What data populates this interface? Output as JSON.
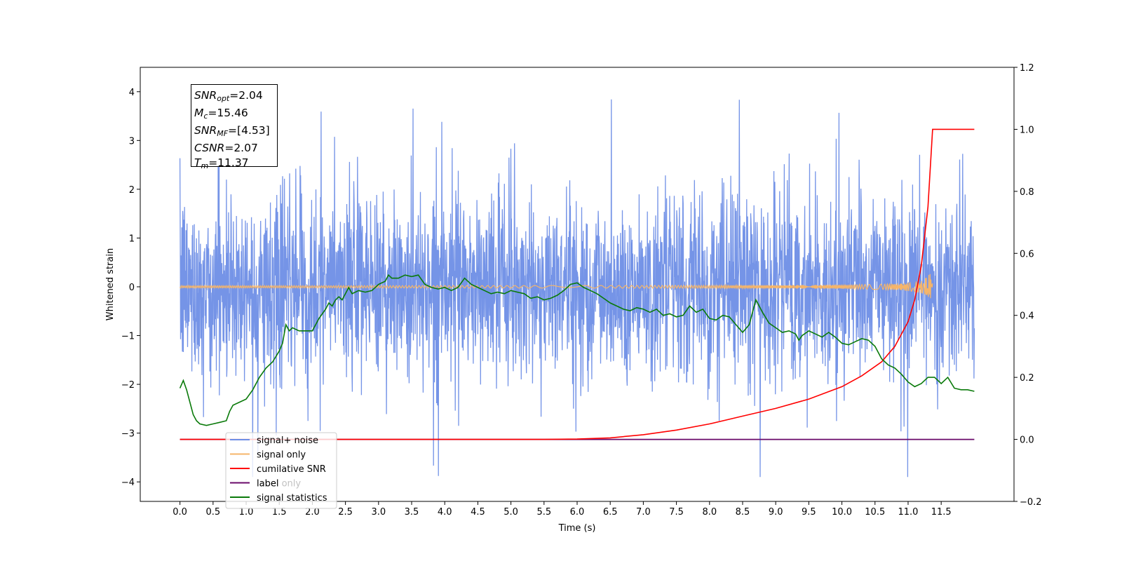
{
  "chart_data": {
    "type": "line",
    "xlabel": "Time (s)",
    "ylabel": "Whitened strain",
    "xlim": [
      -0.6,
      12.6
    ],
    "ylim": [
      -4.4,
      4.5
    ],
    "y2lim": [
      -0.2,
      1.2
    ],
    "x_ticks": [
      "0.0",
      "0.5",
      "1.0",
      "1.5",
      "2.0",
      "2.5",
      "3.0",
      "3.5",
      "4.0",
      "4.5",
      "5.0",
      "5.5",
      "6.0",
      "6.5",
      "7.0",
      "7.5",
      "8.0",
      "8.5",
      "9.0",
      "9.5",
      "10.0",
      "10.5",
      "11.0",
      "11.5"
    ],
    "y_ticks": [
      "4",
      "3",
      "2",
      "1",
      "0",
      "−1",
      "−2",
      "−3",
      "−4"
    ],
    "y2_ticks": [
      "1.2",
      "1.0",
      "0.8",
      "0.6",
      "0.4",
      "0.2",
      "0.0",
      "−0.2"
    ],
    "grid": false,
    "legend_position": "lower-left",
    "legend": [
      "signal+ noise",
      "signal only",
      "cumilative SNR",
      "label",
      "signal statistics"
    ],
    "legend_occluded_text": "label only",
    "annotation": {
      "lines": [
        {
          "symbol": "SNR",
          "sub": "opt",
          "value": "=2.04"
        },
        {
          "symbol": "M",
          "sub": "c",
          "value": "=15.46"
        },
        {
          "symbol": "SNR",
          "sub": "MF",
          "value": "=[4.53]"
        },
        {
          "symbol": "CSNR",
          "sub": "",
          "value": "=2.07"
        },
        {
          "symbol": "T",
          "sub": "m",
          "value": "=11.37"
        }
      ]
    },
    "series": [
      {
        "name": "signal+ noise",
        "axis": "left",
        "color": "#6e8ee6",
        "x_range": [
          0.0,
          12.0
        ],
        "typical_range": [
          -1.8,
          1.8
        ],
        "extreme_range": [
          -3.9,
          4.1
        ]
      },
      {
        "name": "signal only",
        "axis": "left",
        "color": "#f5b56a",
        "x_range": [
          0.0,
          11.37
        ],
        "amplitude_end": 0.45
      },
      {
        "name": "cumilative SNR",
        "axis": "right",
        "color": "#ff0000",
        "x": [
          0.0,
          5.5,
          6.0,
          6.5,
          7.0,
          7.5,
          8.0,
          8.5,
          9.0,
          9.5,
          10.0,
          10.3,
          10.6,
          10.8,
          11.0,
          11.1,
          11.2,
          11.3,
          11.37,
          12.0
        ],
        "y": [
          0.0,
          0.0,
          0.001,
          0.005,
          0.015,
          0.03,
          0.05,
          0.075,
          0.1,
          0.13,
          0.17,
          0.205,
          0.25,
          0.3,
          0.38,
          0.45,
          0.56,
          0.75,
          1.0,
          1.0
        ]
      },
      {
        "name": "label",
        "axis": "right",
        "color": "#6a0a6a",
        "x": [
          0.0,
          12.0
        ],
        "y": [
          0.0,
          0.0
        ]
      },
      {
        "name": "signal statistics",
        "axis": "right",
        "color": "#0a7a0a",
        "x": [
          0.0,
          0.05,
          0.1,
          0.15,
          0.2,
          0.25,
          0.3,
          0.4,
          0.5,
          0.6,
          0.7,
          0.75,
          0.8,
          0.9,
          1.0,
          1.1,
          1.2,
          1.3,
          1.4,
          1.5,
          1.55,
          1.6,
          1.65,
          1.7,
          1.8,
          1.9,
          2.0,
          2.1,
          2.2,
          2.25,
          2.3,
          2.35,
          2.4,
          2.45,
          2.5,
          2.55,
          2.6,
          2.7,
          2.8,
          2.9,
          3.0,
          3.1,
          3.15,
          3.2,
          3.3,
          3.4,
          3.5,
          3.6,
          3.7,
          3.8,
          3.9,
          4.0,
          4.1,
          4.2,
          4.3,
          4.4,
          4.5,
          4.6,
          4.7,
          4.8,
          4.9,
          5.0,
          5.1,
          5.2,
          5.3,
          5.4,
          5.5,
          5.6,
          5.7,
          5.8,
          5.9,
          6.0,
          6.1,
          6.2,
          6.3,
          6.4,
          6.5,
          6.6,
          6.7,
          6.8,
          6.9,
          7.0,
          7.1,
          7.2,
          7.3,
          7.4,
          7.5,
          7.6,
          7.7,
          7.8,
          7.9,
          8.0,
          8.1,
          8.2,
          8.3,
          8.4,
          8.5,
          8.6,
          8.7,
          8.8,
          8.9,
          9.0,
          9.1,
          9.2,
          9.3,
          9.35,
          9.4,
          9.5,
          9.6,
          9.7,
          9.8,
          9.9,
          10.0,
          10.1,
          10.2,
          10.3,
          10.4,
          10.5,
          10.6,
          10.7,
          10.8,
          10.9,
          11.0,
          11.1,
          11.2,
          11.3,
          11.4,
          11.5,
          11.6,
          11.7,
          11.8,
          11.9,
          12.0
        ],
        "y": [
          0.165,
          0.19,
          0.16,
          0.12,
          0.08,
          0.06,
          0.05,
          0.045,
          0.05,
          0.055,
          0.06,
          0.09,
          0.11,
          0.12,
          0.13,
          0.16,
          0.2,
          0.23,
          0.25,
          0.285,
          0.31,
          0.37,
          0.35,
          0.36,
          0.35,
          0.35,
          0.35,
          0.39,
          0.42,
          0.44,
          0.43,
          0.45,
          0.46,
          0.45,
          0.47,
          0.49,
          0.47,
          0.48,
          0.475,
          0.48,
          0.5,
          0.51,
          0.53,
          0.52,
          0.52,
          0.53,
          0.525,
          0.53,
          0.5,
          0.49,
          0.485,
          0.49,
          0.48,
          0.49,
          0.52,
          0.5,
          0.49,
          0.48,
          0.47,
          0.475,
          0.47,
          0.48,
          0.475,
          0.47,
          0.455,
          0.46,
          0.45,
          0.455,
          0.465,
          0.48,
          0.5,
          0.505,
          0.49,
          0.48,
          0.47,
          0.455,
          0.44,
          0.43,
          0.42,
          0.415,
          0.425,
          0.42,
          0.41,
          0.42,
          0.4,
          0.405,
          0.395,
          0.4,
          0.43,
          0.41,
          0.42,
          0.39,
          0.385,
          0.4,
          0.395,
          0.37,
          0.345,
          0.37,
          0.45,
          0.41,
          0.375,
          0.36,
          0.345,
          0.35,
          0.34,
          0.32,
          0.335,
          0.35,
          0.34,
          0.33,
          0.345,
          0.33,
          0.31,
          0.305,
          0.315,
          0.325,
          0.32,
          0.3,
          0.26,
          0.24,
          0.23,
          0.21,
          0.185,
          0.17,
          0.18,
          0.2,
          0.2,
          0.18,
          0.2,
          0.165,
          0.16,
          0.16,
          0.155
        ]
      }
    ]
  }
}
